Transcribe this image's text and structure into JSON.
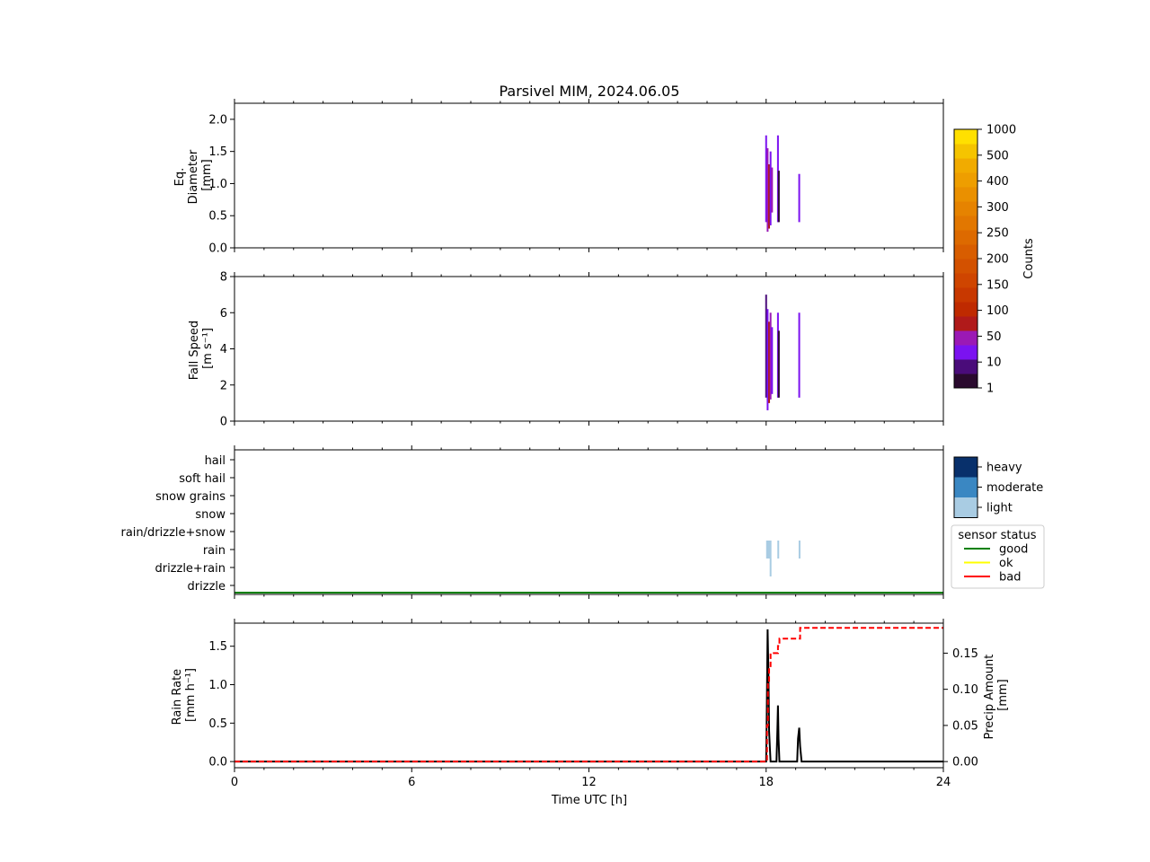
{
  "title": "Parsivel MIM, 2024.06.05",
  "colors": {
    "counts_scale": [
      "#2a0a2e",
      "#4a0c7a",
      "#7b12f0",
      "#9b19b5",
      "#b01a1a",
      "#bf2a00",
      "#c83800",
      "#cf4500",
      "#d35100",
      "#d85d00",
      "#dd6a00",
      "#e27700",
      "#e68300",
      "#ea9000",
      "#ee9e00",
      "#f1ab00",
      "#f5c400",
      "#ffe000"
    ],
    "intensity": {
      "heavy": "#08306b",
      "moderate": "#3a87c2",
      "light": "#a9cce3"
    },
    "status": {
      "good": "#008000",
      "ok": "#ffff00",
      "bad": "#ff0000"
    },
    "rain_rate_line": "#000000",
    "precip_amount_line": "#ff0000"
  },
  "panels": {
    "diameter": {
      "ylabel_lines": [
        "Eq.",
        "Diameter",
        "[mm]"
      ]
    },
    "fallspeed": {
      "ylabel_lines": [
        "Fall Speed",
        "[m s⁻¹]"
      ]
    },
    "rainrate": {
      "ylabel_lines": [
        "Rain Rate",
        "[mm h⁻¹]"
      ],
      "ylabel2_lines": [
        "Precip Amount",
        "[mm]"
      ]
    }
  },
  "xaxis": {
    "label": "Time UTC [h]"
  },
  "colorbar": {
    "label": "Counts"
  },
  "intensity_legend": {
    "items": [
      "heavy",
      "moderate",
      "light"
    ]
  },
  "status_legend": {
    "title": "sensor status",
    "items": [
      "good",
      "ok",
      "bad"
    ]
  },
  "chart_data": [
    {
      "type": "heatmap",
      "name": "diameter",
      "xlim": [
        0,
        24
      ],
      "ylim": [
        0,
        2.25
      ],
      "xticks": [
        0,
        6,
        12,
        18,
        24
      ],
      "yticks": [
        0.0,
        0.5,
        1.0,
        1.5,
        2.0
      ],
      "ytick_labels": [
        "0.0",
        "0.5",
        "1.0",
        "1.5",
        "2.0"
      ],
      "bars": [
        {
          "t": 18.0,
          "y0": 0.4,
          "y1": 1.75,
          "color": "#7b12f0"
        },
        {
          "t": 18.05,
          "y0": 0.25,
          "y1": 1.55,
          "color": "#9b19b5"
        },
        {
          "t": 18.1,
          "y0": 0.3,
          "y1": 1.3,
          "color": "#b01a1a"
        },
        {
          "t": 18.15,
          "y0": 0.35,
          "y1": 1.5,
          "color": "#7b12f0"
        },
        {
          "t": 18.2,
          "y0": 0.55,
          "y1": 1.25,
          "color": "#9b19b5"
        },
        {
          "t": 18.4,
          "y0": 0.4,
          "y1": 1.75,
          "color": "#7b12f0"
        },
        {
          "t": 18.43,
          "y0": 0.4,
          "y1": 1.2,
          "color": "#2a0a2e"
        },
        {
          "t": 19.12,
          "y0": 0.4,
          "y1": 1.15,
          "color": "#7b12f0"
        }
      ]
    },
    {
      "type": "heatmap",
      "name": "fallspeed",
      "xlim": [
        0,
        24
      ],
      "ylim": [
        0,
        8
      ],
      "xticks": [
        0,
        6,
        12,
        18,
        24
      ],
      "yticks": [
        0,
        2,
        4,
        6,
        8
      ],
      "ytick_labels": [
        "0",
        "2",
        "4",
        "6",
        "8"
      ],
      "bars": [
        {
          "t": 18.0,
          "y0": 1.3,
          "y1": 7.0,
          "color": "#4a0c7a"
        },
        {
          "t": 18.05,
          "y0": 0.6,
          "y1": 6.2,
          "color": "#7b12f0"
        },
        {
          "t": 18.1,
          "y0": 1.0,
          "y1": 5.5,
          "color": "#b01a1a"
        },
        {
          "t": 18.15,
          "y0": 1.2,
          "y1": 6.0,
          "color": "#9b19b5"
        },
        {
          "t": 18.2,
          "y0": 1.5,
          "y1": 5.2,
          "color": "#7b12f0"
        },
        {
          "t": 18.4,
          "y0": 1.3,
          "y1": 6.0,
          "color": "#7b12f0"
        },
        {
          "t": 18.43,
          "y0": 1.3,
          "y1": 5.0,
          "color": "#2a0a2e"
        },
        {
          "t": 19.12,
          "y0": 1.3,
          "y1": 6.0,
          "color": "#7b12f0"
        }
      ]
    },
    {
      "type": "heatmap",
      "name": "precip_type",
      "xlim": [
        0,
        24
      ],
      "categories": [
        "drizzle",
        "drizzle+rain",
        "rain",
        "rain/drizzle+snow",
        "snow",
        "snow grains",
        "soft hail",
        "hail"
      ],
      "cells": [
        {
          "t0": 18.0,
          "t1": 18.18,
          "category": "rain",
          "intensity": "light"
        },
        {
          "t0": 18.12,
          "t1": 18.18,
          "category": "drizzle+rain",
          "intensity": "light"
        },
        {
          "t0": 18.38,
          "t1": 18.44,
          "category": "rain",
          "intensity": "light"
        },
        {
          "t0": 19.1,
          "t1": 19.16,
          "category": "rain",
          "intensity": "light"
        }
      ],
      "status_series": {
        "status": "good",
        "t": [
          0,
          24
        ]
      }
    },
    {
      "type": "line",
      "name": "rainrate",
      "xlim": [
        0,
        24
      ],
      "ylim": [
        -0.08,
        1.8
      ],
      "ylim2": [
        -0.0085,
        0.1915
      ],
      "xticks": [
        0,
        6,
        12,
        18,
        24
      ],
      "xtick_labels": [
        "0",
        "6",
        "12",
        "18",
        "24"
      ],
      "yticks": [
        0.0,
        0.5,
        1.0,
        1.5
      ],
      "ytick_labels": [
        "0.0",
        "0.5",
        "1.0",
        "1.5"
      ],
      "yticks2": [
        0.0,
        0.05,
        0.1,
        0.15
      ],
      "ytick2_labels": [
        "0.00",
        "0.05",
        "0.10",
        "0.15"
      ],
      "series": [
        {
          "axis": "left",
          "style": "solid",
          "x": [
            0,
            18.0,
            18.02,
            18.05,
            18.08,
            18.1,
            18.13,
            18.15,
            18.2,
            18.35,
            18.38,
            18.4,
            18.42,
            18.45,
            18.5,
            19.05,
            19.08,
            19.12,
            19.15,
            19.2,
            24
          ],
          "y": [
            0,
            0,
            0.6,
            1.72,
            1.1,
            0.4,
            0.15,
            0,
            0,
            0,
            0.4,
            0.73,
            0.3,
            0,
            0,
            0,
            0.3,
            0.44,
            0.2,
            0,
            0
          ]
        },
        {
          "axis": "right",
          "style": "dashed",
          "x": [
            0,
            18.0,
            18.03,
            18.06,
            18.1,
            18.15,
            18.2,
            18.25,
            18.4,
            18.45,
            19.1,
            19.15,
            24
          ],
          "y": [
            0,
            0,
            0.05,
            0.11,
            0.13,
            0.15,
            0.15,
            0.15,
            0.16,
            0.17,
            0.17,
            0.185,
            0.185
          ]
        }
      ]
    }
  ],
  "counts_ticks": [
    "1",
    "10",
    "50",
    "100",
    "150",
    "200",
    "250",
    "300",
    "400",
    "500",
    "1000"
  ]
}
